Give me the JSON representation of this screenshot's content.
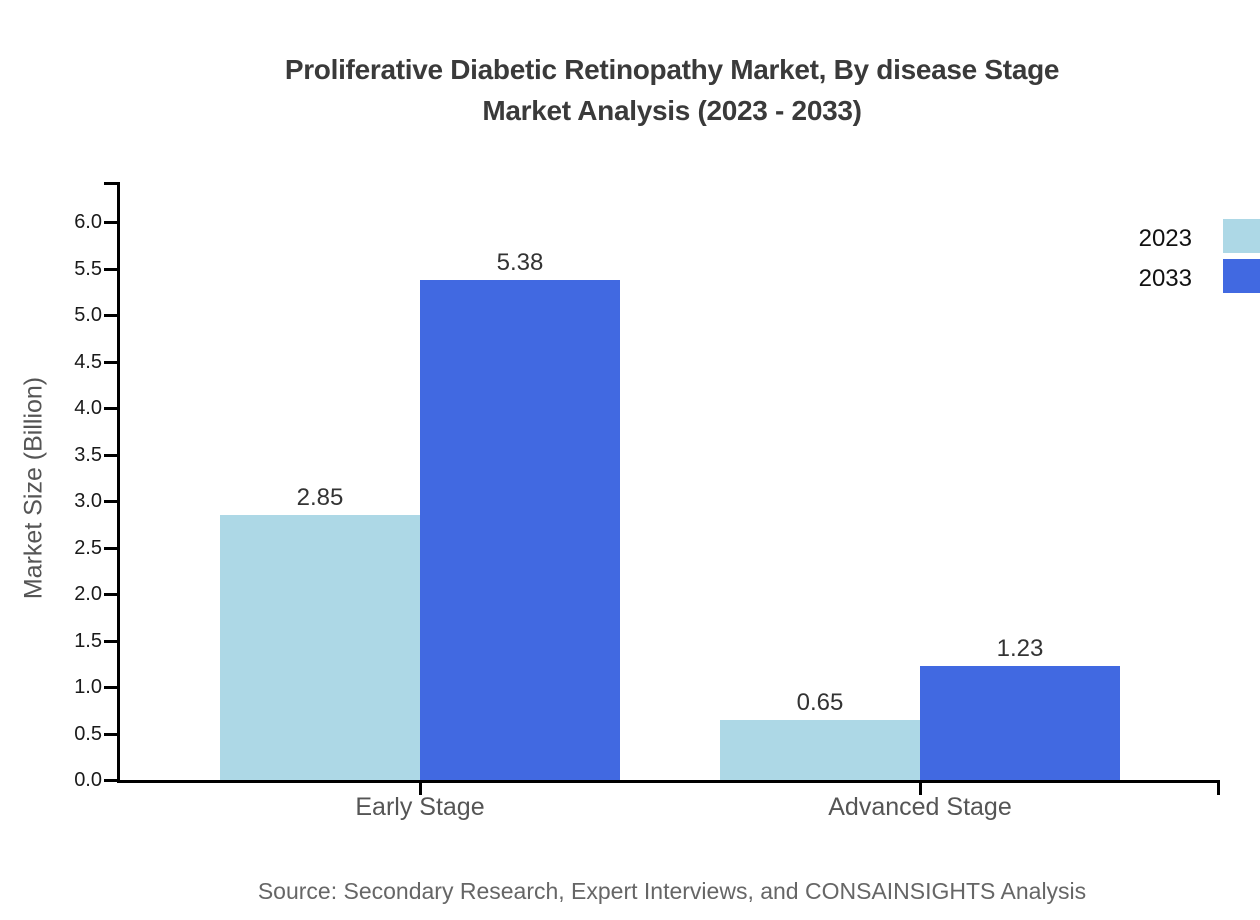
{
  "title": {
    "line1": "Proliferative Diabetic Retinopathy Market, By disease Stage",
    "line2": "Market Analysis (2023 - 2033)"
  },
  "source": "Source: Secondary Research, Expert Interviews, and CONSAINSIGHTS Analysis",
  "chart_data": {
    "type": "bar",
    "title": "Proliferative Diabetic Retinopathy Market, By disease Stage Market Analysis (2023 - 2033)",
    "categories": [
      "Early Stage",
      "Advanced Stage"
    ],
    "series": [
      {
        "name": "2023",
        "color": "#ADD8E6",
        "values": [
          2.85,
          0.65
        ]
      },
      {
        "name": "2033",
        "color": "#4169E1",
        "values": [
          5.38,
          1.23
        ]
      }
    ],
    "xlabel": "",
    "ylabel": "Market Size (Billion)",
    "ylim": [
      0,
      6.5
    ],
    "ytick_step": 0.5,
    "ytick_top": 6.0,
    "grid": false,
    "legend_position": "top-right",
    "value_label_format": "2-decimals",
    "axis_color": "#000000"
  },
  "colors": {
    "title_text": "#3a3a3a",
    "tick_text": "#1a1a1a",
    "category_text": "#555555",
    "value_text": "#333333",
    "source_text": "#666666",
    "background": "#ffffff"
  }
}
